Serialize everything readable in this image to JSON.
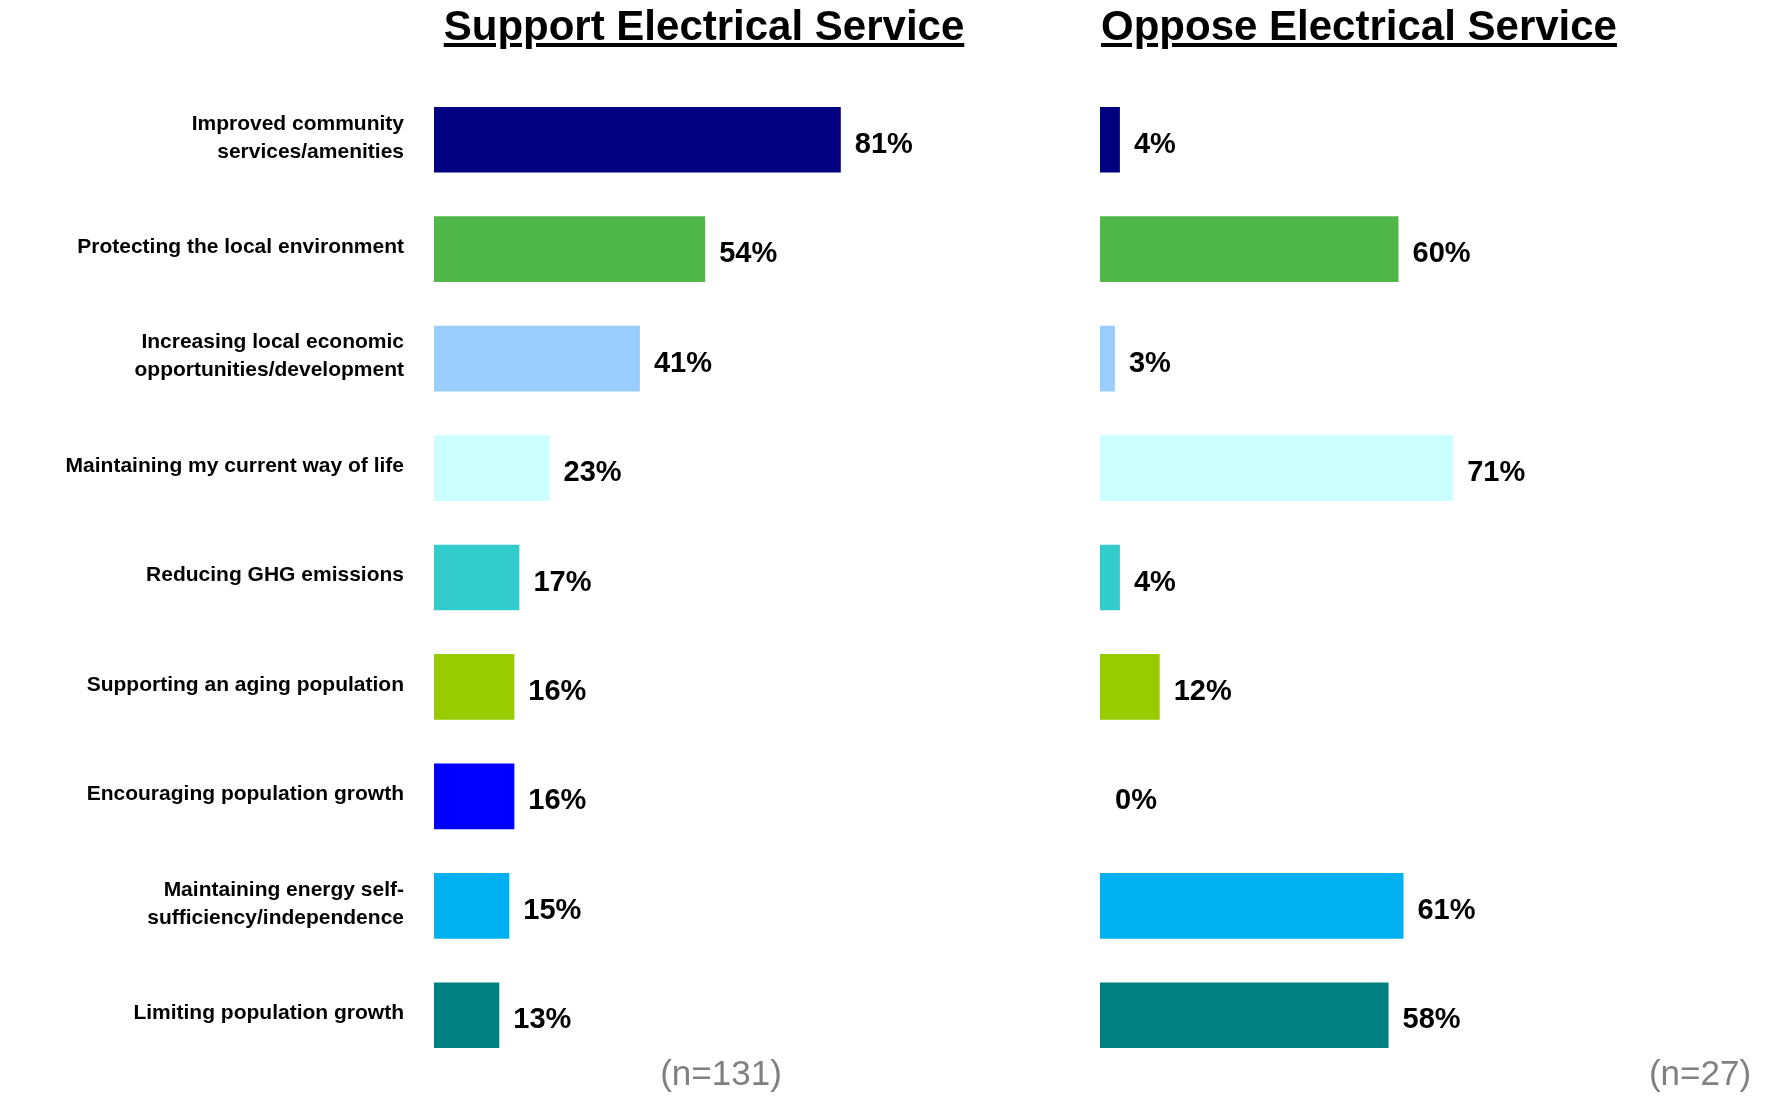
{
  "chart_data": [
    {
      "type": "bar",
      "orientation": "horizontal",
      "title": "Support Electrical Service",
      "categories": [
        "Improved community services/amenities",
        "Protecting the local environment",
        "Increasing local economic opportunities/development",
        "Maintaining my current way of life",
        "Reducing GHG emissions",
        "Supporting an aging population",
        "Encouraging population growth",
        "Maintaining energy self-sufficiency/independence",
        "Limiting population growth"
      ],
      "values": [
        81,
        54,
        41,
        23,
        17,
        16,
        16,
        15,
        13
      ],
      "value_labels": [
        "81%",
        "54%",
        "41%",
        "23%",
        "17%",
        "16%",
        "16%",
        "15%",
        "13%"
      ],
      "colors": [
        "#000080",
        "#50b848",
        "#99ccff",
        "#ccffff",
        "#33cccc",
        "#99cc00",
        "#0000ff",
        "#00b0f0",
        "#008080"
      ],
      "legend": false,
      "tick_labels": "y",
      "annotations": [
        "(n=131)"
      ]
    },
    {
      "type": "bar",
      "orientation": "horizontal",
      "title": "Oppose Electrical Service",
      "categories": [
        null,
        null,
        null,
        null,
        null,
        null,
        null,
        null,
        null
      ],
      "values": [
        4,
        60,
        3,
        71,
        4,
        12,
        0,
        61,
        58
      ],
      "value_labels": [
        "4%",
        "60%",
        "3%",
        "71%",
        "4%",
        "12%",
        "0%",
        "61%",
        "58%"
      ],
      "colors": [
        "#000080",
        "#50b848",
        "#99ccff",
        "#ccffff",
        "#33cccc",
        "#99cc00",
        "#0000ff",
        "#00b0f0",
        "#008080"
      ],
      "legend": false,
      "tick_labels": false,
      "annotations": [
        "(n=27)"
      ]
    }
  ]
}
